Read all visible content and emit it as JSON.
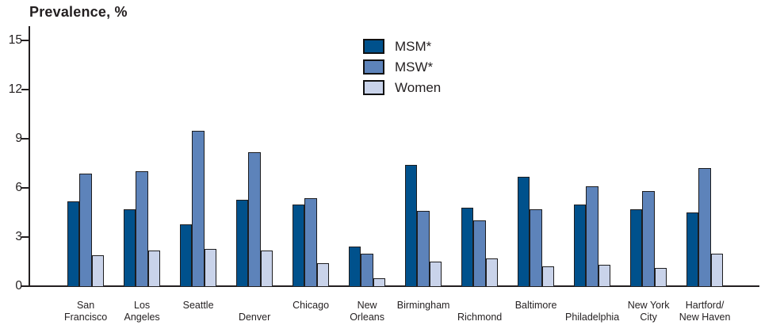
{
  "chart_data": {
    "type": "bar",
    "title": "Prevalence, %",
    "xlabel": "",
    "ylabel": "Prevalence, %",
    "ylim": [
      0,
      15
    ],
    "yticks": [
      0,
      3,
      6,
      9,
      12,
      15
    ],
    "grid": false,
    "legend_position": "top-center",
    "categories": [
      "San Francisco",
      "Los Angeles",
      "Seattle",
      "Denver",
      "Chicago",
      "New Orleans",
      "Birmingham",
      "Richmond",
      "Baltimore",
      "Philadelphia",
      "New York City",
      "Hartford/New Haven"
    ],
    "category_label_lines": [
      [
        "San",
        "Francisco"
      ],
      [
        "Los",
        "Angeles"
      ],
      [
        "Seattle",
        ""
      ],
      [
        "",
        "Denver"
      ],
      [
        "Chicago",
        ""
      ],
      [
        "New",
        "Orleans"
      ],
      [
        "Birmingham",
        ""
      ],
      [
        "",
        "Richmond"
      ],
      [
        "Baltimore",
        ""
      ],
      [
        "",
        "Philadelphia"
      ],
      [
        "New York",
        "City"
      ],
      [
        "Hartford/",
        "New Haven"
      ]
    ],
    "series": [
      {
        "name": "MSM*",
        "color": "#00518c",
        "values": [
          5.2,
          4.7,
          3.8,
          5.3,
          5.0,
          2.4,
          7.4,
          4.8,
          6.7,
          5.0,
          4.7,
          4.5
        ]
      },
      {
        "name": "MSW*",
        "color": "#5d83ba",
        "values": [
          6.9,
          7.0,
          9.5,
          8.2,
          5.4,
          2.0,
          4.6,
          4.0,
          4.7,
          6.1,
          5.8,
          7.2
        ]
      },
      {
        "name": "Women",
        "color": "#c9d3ea",
        "values": [
          1.9,
          2.2,
          2.3,
          2.2,
          1.4,
          0.5,
          1.5,
          1.7,
          1.2,
          1.3,
          1.1,
          2.0
        ]
      }
    ]
  },
  "colors": {
    "axis": "#231f20",
    "bar_outline": "#1d1d1f",
    "background": "#ffffff",
    "msm": "#00518c",
    "msw": "#5d83ba",
    "women": "#c9d3ea"
  }
}
